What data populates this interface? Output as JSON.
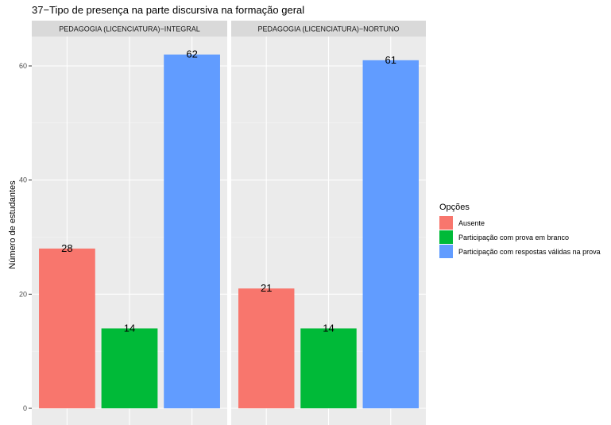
{
  "chart_data": {
    "type": "bar",
    "title": "37−Tipo de presença na parte discursiva na formação geral",
    "xlabel": "",
    "ylabel": "Número de estudantes",
    "ylim": [
      0,
      65
    ],
    "yticks": [
      "0",
      "20",
      "40",
      "60"
    ],
    "grid": true,
    "legend": {
      "title": "Opções",
      "position": "right",
      "entries": [
        {
          "label": "Ausente",
          "color": "#F8766D"
        },
        {
          "label": "Participação com prova em branco",
          "color": "#00BA38"
        },
        {
          "label": "Participação com respostas válidas na prova",
          "color": "#619CFF"
        }
      ]
    },
    "categories": [
      "Ausente",
      "Participação com prova em branco",
      "Participação com respostas válidas na prova"
    ],
    "panels": [
      {
        "strip": "PEDAGOGIA (LICENCIATURA)−INTEGRAL",
        "values": [
          28,
          14,
          62
        ],
        "labels": [
          "28",
          "14",
          "62"
        ]
      },
      {
        "strip": "PEDAGOGIA (LICENCIATURA)−NORTUNO",
        "values": [
          21,
          14,
          61
        ],
        "labels": [
          "21",
          "14",
          "61"
        ]
      }
    ]
  }
}
